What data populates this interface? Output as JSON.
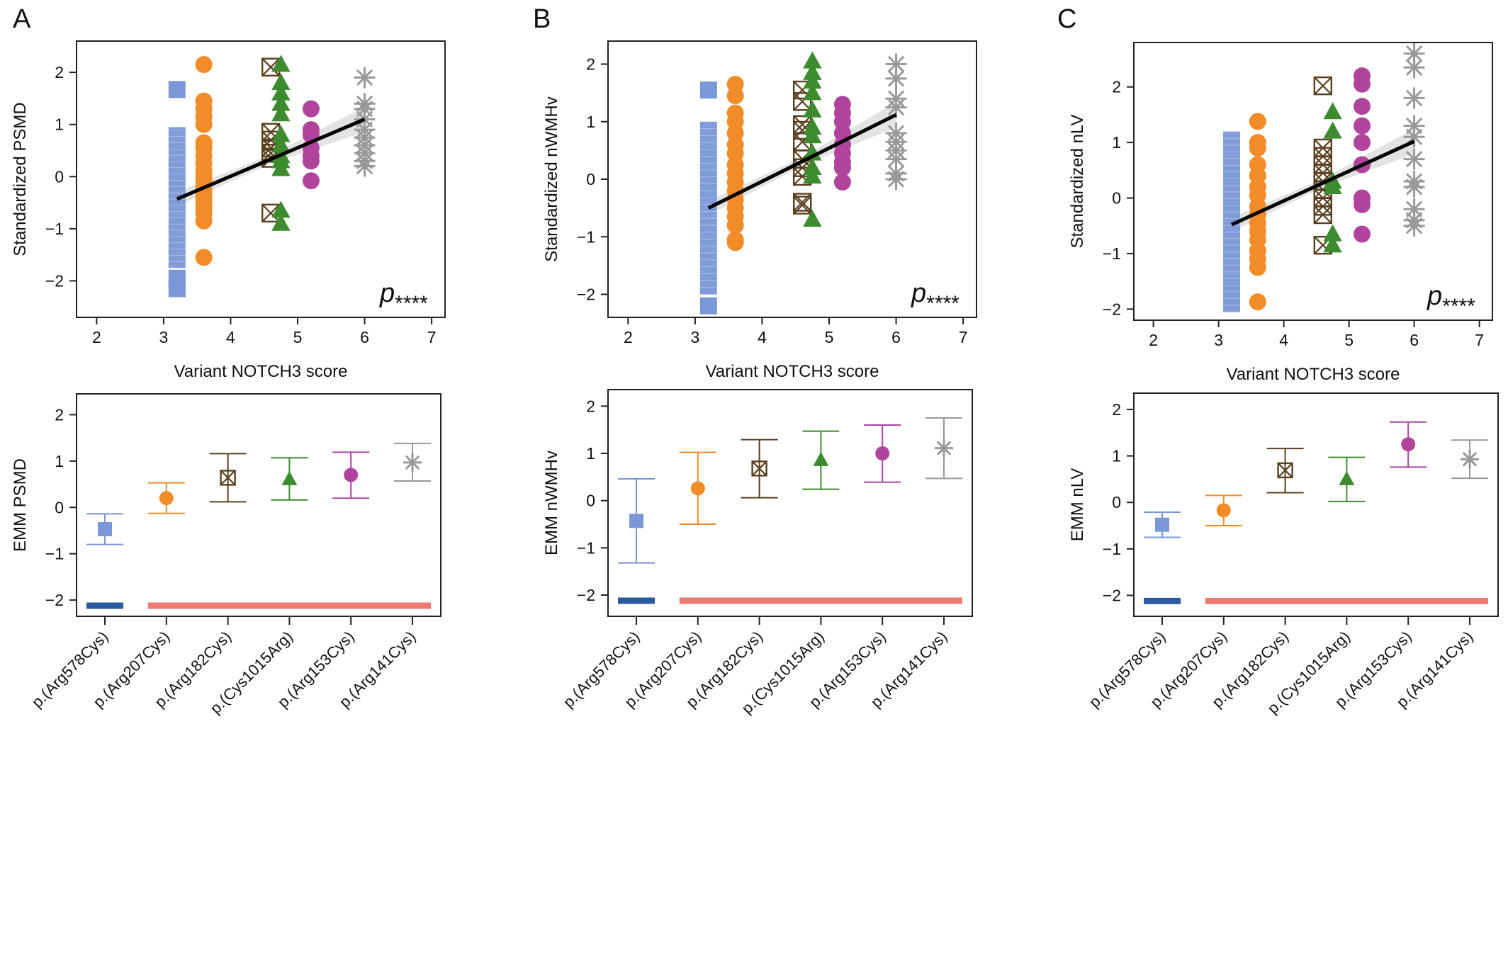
{
  "figure": {
    "panel_letters": [
      "A",
      "B",
      "C"
    ],
    "colors": {
      "Arg578Cys": "#7b97d8",
      "Arg207Cys": "#f28c28",
      "Arg182Cys": "#5a3f1e",
      "Cys1015Arg": "#3d8b2f",
      "Arg153Cys": "#b0449d",
      "Arg141Cys": "#999999",
      "fit_line": "#000000",
      "band": "#cccccc",
      "group_bar_1": "#2c5aa0",
      "group_bar_2": "#ee7a74"
    }
  },
  "chart_data": [
    {
      "type": "scatter",
      "panel": "A",
      "xlabel": "Variant NOTCH3 score",
      "ylabel": "Standardized PSMD",
      "xlim": [
        1.7,
        7.2
      ],
      "ylim": [
        -2.7,
        2.6
      ],
      "xticks": [
        2,
        3,
        4,
        5,
        6,
        7
      ],
      "yticks": [
        -2,
        -1,
        0,
        1,
        2
      ],
      "annotation": "p****",
      "fit_line": {
        "x": [
          3.2,
          6.0
        ],
        "y": [
          -0.43,
          1.1
        ]
      },
      "series": [
        {
          "name": "p.(Arg578Cys)",
          "marker": "square",
          "x": 3.2,
          "bar": [
            -1.75,
            0.95
          ],
          "points": [
            1.67,
            -1.95,
            -2.05,
            -2.15
          ]
        },
        {
          "name": "p.(Arg207Cys)",
          "marker": "circle",
          "x": 3.6,
          "points": [
            2.15,
            1.45,
            1.3,
            1.15,
            1.0,
            0.65,
            0.55,
            0.4,
            0.25,
            0.1,
            0.0,
            -0.1,
            -0.2,
            -0.3,
            -0.4,
            -0.5,
            -0.6,
            -0.7,
            -0.85,
            -1.55
          ]
        },
        {
          "name": "p.(Arg182Cys)",
          "marker": "boxx",
          "x": 4.6,
          "points": [
            2.1,
            0.85,
            0.7,
            0.55,
            0.45,
            0.35,
            -0.7
          ]
        },
        {
          "name": "p.(Cys1015Arg)",
          "marker": "triangle",
          "x": 4.75,
          "points": [
            2.15,
            1.8,
            1.6,
            1.4,
            1.2,
            0.8,
            0.6,
            0.4,
            0.3,
            0.15,
            -0.65,
            -0.9
          ]
        },
        {
          "name": "p.(Arg153Cys)",
          "marker": "circle",
          "x": 5.2,
          "points": [
            1.3,
            0.9,
            0.8,
            0.55,
            0.4,
            0.3,
            -0.08
          ]
        },
        {
          "name": "p.(Arg141Cys)",
          "marker": "asterisk",
          "x": 6.0,
          "points": [
            1.9,
            1.4,
            1.3,
            1.1,
            0.9,
            0.75,
            0.6,
            0.45,
            0.3,
            0.2
          ]
        }
      ]
    },
    {
      "type": "scatter",
      "panel": "B",
      "xlabel": "Variant NOTCH3 score",
      "ylabel": "Standardized nWMHv",
      "xlim": [
        1.7,
        7.2
      ],
      "ylim": [
        -2.4,
        2.4
      ],
      "xticks": [
        2,
        3,
        4,
        5,
        6,
        7
      ],
      "yticks": [
        -2,
        -1,
        0,
        1,
        2
      ],
      "annotation": "p****",
      "fit_line": {
        "x": [
          3.2,
          6.0
        ],
        "y": [
          -0.5,
          1.12
        ]
      },
      "series": [
        {
          "name": "p.(Arg578Cys)",
          "marker": "square",
          "x": 3.2,
          "bar": [
            -2.0,
            1.0
          ],
          "points": [
            1.55,
            -2.2
          ]
        },
        {
          "name": "p.(Arg207Cys)",
          "marker": "circle",
          "x": 3.6,
          "points": [
            1.65,
            1.45,
            1.15,
            1.0,
            0.8,
            0.6,
            0.45,
            0.25,
            0.1,
            -0.05,
            -0.2,
            -0.35,
            -0.5,
            -0.65,
            -0.8,
            -1.05,
            -1.1
          ]
        },
        {
          "name": "p.(Arg182Cys)",
          "marker": "boxx",
          "x": 4.6,
          "points": [
            1.55,
            1.35,
            0.95,
            0.85,
            0.65,
            0.35,
            0.2,
            0.05,
            -0.4,
            -0.45
          ]
        },
        {
          "name": "p.(Cys1015Arg)",
          "marker": "triangle",
          "x": 4.75,
          "points": [
            2.05,
            1.85,
            1.7,
            1.5,
            1.2,
            0.9,
            0.75,
            0.45,
            0.2,
            0.05,
            -0.7
          ]
        },
        {
          "name": "p.(Arg153Cys)",
          "marker": "circle",
          "x": 5.2,
          "points": [
            1.3,
            1.15,
            1.0,
            0.8,
            0.6,
            0.45,
            0.3,
            0.2,
            -0.05
          ]
        },
        {
          "name": "p.(Arg141Cys)",
          "marker": "asterisk",
          "x": 6.0,
          "points": [
            2.0,
            1.75,
            1.4,
            1.25,
            0.8,
            0.65,
            0.5,
            0.35,
            0.1,
            0.0
          ]
        }
      ]
    },
    {
      "type": "scatter",
      "panel": "C",
      "xlabel": "Variant NOTCH3 score",
      "ylabel": "Standardized nLV",
      "xlim": [
        1.7,
        7.2
      ],
      "ylim": [
        -2.2,
        2.8
      ],
      "xticks": [
        2,
        3,
        4,
        5,
        6,
        7
      ],
      "yticks": [
        -2,
        -1,
        0,
        1,
        2
      ],
      "annotation": "p****",
      "fit_line": {
        "x": [
          3.2,
          6.0
        ],
        "y": [
          -0.48,
          1.02
        ]
      },
      "series": [
        {
          "name": "p.(Arg578Cys)",
          "marker": "square",
          "x": 3.2,
          "bar": [
            -2.05,
            1.2
          ],
          "points": []
        },
        {
          "name": "p.(Arg207Cys)",
          "marker": "circle",
          "x": 3.6,
          "points": [
            1.38,
            1.0,
            0.9,
            0.6,
            0.4,
            0.2,
            0.05,
            -0.15,
            -0.3,
            -0.45,
            -0.6,
            -0.75,
            -0.95,
            -1.1,
            -1.25,
            -1.87
          ]
        },
        {
          "name": "p.(Arg182Cys)",
          "marker": "boxx",
          "x": 4.6,
          "points": [
            2.02,
            0.9,
            0.75,
            0.6,
            0.45,
            0.3,
            0.15,
            0.0,
            -0.15,
            -0.3,
            -0.85
          ]
        },
        {
          "name": "p.(Cys1015Arg)",
          "marker": "triangle",
          "x": 4.75,
          "points": [
            1.55,
            1.2,
            0.3,
            0.2,
            -0.65,
            -0.85
          ]
        },
        {
          "name": "p.(Arg153Cys)",
          "marker": "circle",
          "x": 5.2,
          "points": [
            2.2,
            2.05,
            1.65,
            1.3,
            1.0,
            0.6,
            0.0,
            -0.12,
            -0.65
          ]
        },
        {
          "name": "p.(Arg141Cys)",
          "marker": "asterisk",
          "x": 6.0,
          "points": [
            2.6,
            2.35,
            1.8,
            1.3,
            1.1,
            0.7,
            0.3,
            0.2,
            -0.2,
            -0.4,
            -0.5
          ]
        }
      ]
    },
    {
      "type": "errorbar",
      "panel": "A",
      "ylabel": "EMM PSMD",
      "ylim": [
        -2.35,
        2.45
      ],
      "yticks": [
        -2,
        -1,
        0,
        1,
        2
      ],
      "categories": [
        "p.(Arg578Cys)",
        "p.(Arg207Cys)",
        "p.(Arg182Cys)",
        "p.(Cys1015Arg)",
        "p.(Arg153Cys)",
        "p.(Arg141Cys)"
      ],
      "series": [
        {
          "name": "p.(Arg578Cys)",
          "marker": "square",
          "mean": -0.47,
          "low": -0.8,
          "high": -0.14
        },
        {
          "name": "p.(Arg207Cys)",
          "marker": "circle",
          "mean": 0.2,
          "low": -0.13,
          "high": 0.53
        },
        {
          "name": "p.(Arg182Cys)",
          "marker": "boxx",
          "mean": 0.64,
          "low": 0.12,
          "high": 1.16
        },
        {
          "name": "p.(Cys1015Arg)",
          "marker": "triangle",
          "mean": 0.61,
          "low": 0.16,
          "high": 1.07
        },
        {
          "name": "p.(Arg153Cys)",
          "marker": "circle",
          "mean": 0.7,
          "low": 0.2,
          "high": 1.19
        },
        {
          "name": "p.(Arg141Cys)",
          "marker": "asterisk",
          "mean": 0.97,
          "low": 0.57,
          "high": 1.38
        }
      ],
      "groups": [
        {
          "from": 0,
          "to": 0,
          "level": 1
        },
        {
          "from": 1,
          "to": 5,
          "level": 2
        }
      ]
    },
    {
      "type": "errorbar",
      "panel": "B",
      "ylabel": "EMM nWMHv",
      "ylim": [
        -2.45,
        2.35
      ],
      "yticks": [
        -2,
        -1,
        0,
        1,
        2
      ],
      "categories": [
        "p.(Arg578Cys)",
        "p.(Arg207Cys)",
        "p.(Arg182Cys)",
        "p.(Cys1015Arg)",
        "p.(Arg153Cys)",
        "p.(Arg141Cys)"
      ],
      "series": [
        {
          "name": "p.(Arg578Cys)",
          "marker": "square",
          "mean": -0.43,
          "low": -1.32,
          "high": 0.46
        },
        {
          "name": "p.(Arg207Cys)",
          "marker": "circle",
          "mean": 0.26,
          "low": -0.5,
          "high": 1.02
        },
        {
          "name": "p.(Arg182Cys)",
          "marker": "boxx",
          "mean": 0.68,
          "low": 0.06,
          "high": 1.29
        },
        {
          "name": "p.(Cys1015Arg)",
          "marker": "triangle",
          "mean": 0.86,
          "low": 0.24,
          "high": 1.47
        },
        {
          "name": "p.(Arg153Cys)",
          "marker": "circle",
          "mean": 1.0,
          "low": 0.39,
          "high": 1.6
        },
        {
          "name": "p.(Arg141Cys)",
          "marker": "asterisk",
          "mean": 1.11,
          "low": 0.47,
          "high": 1.75
        }
      ],
      "groups": [
        {
          "from": 0,
          "to": 0,
          "level": 1
        },
        {
          "from": 1,
          "to": 5,
          "level": 2
        }
      ]
    },
    {
      "type": "errorbar",
      "panel": "C",
      "ylabel": "EMM nLV",
      "ylim": [
        -2.45,
        2.35
      ],
      "yticks": [
        -2,
        -1,
        0,
        1,
        2
      ],
      "categories": [
        "p.(Arg578Cys)",
        "p.(Arg207Cys)",
        "p.(Arg182Cys)",
        "p.(Cys1015Arg)",
        "p.(Arg153Cys)",
        "p.(Arg141Cys)"
      ],
      "series": [
        {
          "name": "p.(Arg578Cys)",
          "marker": "square",
          "mean": -0.48,
          "low": -0.75,
          "high": -0.21
        },
        {
          "name": "p.(Arg207Cys)",
          "marker": "circle",
          "mean": -0.17,
          "low": -0.5,
          "high": 0.15
        },
        {
          "name": "p.(Arg182Cys)",
          "marker": "boxx",
          "mean": 0.69,
          "low": 0.21,
          "high": 1.16
        },
        {
          "name": "p.(Cys1015Arg)",
          "marker": "triangle",
          "mean": 0.5,
          "low": 0.02,
          "high": 0.97
        },
        {
          "name": "p.(Arg153Cys)",
          "marker": "circle",
          "mean": 1.25,
          "low": 0.76,
          "high": 1.73
        },
        {
          "name": "p.(Arg141Cys)",
          "marker": "asterisk",
          "mean": 0.93,
          "low": 0.52,
          "high": 1.34
        }
      ],
      "groups": [
        {
          "from": 0,
          "to": 0,
          "level": 1
        },
        {
          "from": 1,
          "to": 5,
          "level": 2
        }
      ]
    }
  ]
}
